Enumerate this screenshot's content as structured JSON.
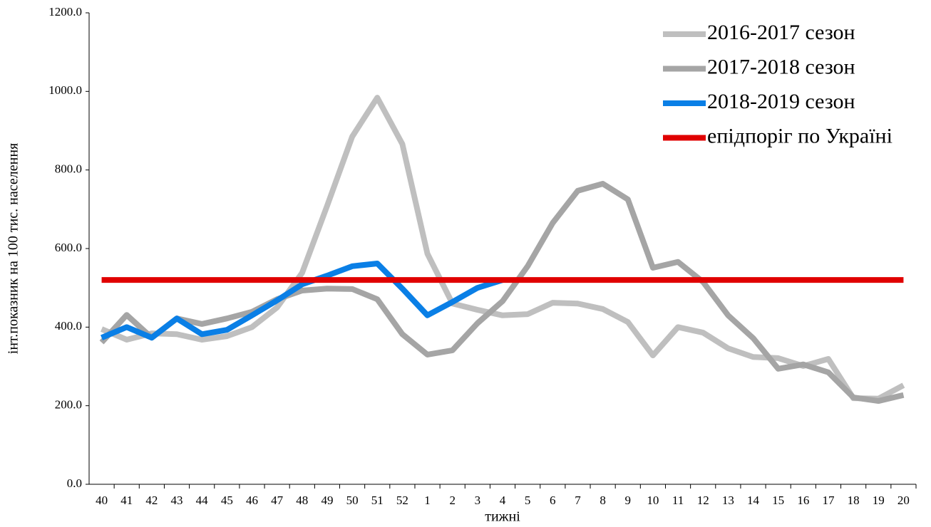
{
  "chart_data": {
    "type": "line",
    "xlabel": "тижні",
    "ylabel": "інт.показник на 100 тис. населення",
    "categories": [
      "40",
      "41",
      "42",
      "43",
      "44",
      "45",
      "46",
      "47",
      "48",
      "49",
      "50",
      "51",
      "52",
      "1",
      "2",
      "3",
      "4",
      "5",
      "6",
      "7",
      "8",
      "9",
      "10",
      "11",
      "12",
      "13",
      "14",
      "15",
      "16",
      "17",
      "18",
      "19",
      "20"
    ],
    "series": [
      {
        "name": "2016-2017 сезон",
        "color": "#bfbfbf",
        "values": [
          395,
          368,
          384,
          382,
          368,
          377,
          400,
          450,
          538,
          709,
          885,
          984,
          866,
          587,
          460,
          444,
          430,
          433,
          462,
          460,
          446,
          413,
          328,
          400,
          386,
          346,
          324,
          321,
          301,
          319,
          219,
          218,
          252
        ]
      },
      {
        "name": "2017-2018 сезон",
        "color": "#a5a5a5",
        "values": [
          361,
          431,
          373,
          422,
          408,
          422,
          439,
          471,
          493,
          498,
          497,
          471,
          382,
          330,
          341,
          410,
          466,
          555,
          665,
          747,
          765,
          725,
          551,
          566,
          515,
          430,
          372,
          294,
          305,
          285,
          221,
          212,
          227
        ]
      },
      {
        "name": "2018-2019 сезон",
        "color": "#0a7fe6",
        "values": [
          373,
          400,
          373,
          422,
          382,
          393,
          430,
          468,
          509,
          531,
          555,
          562,
          498,
          430,
          464,
          500,
          520,
          null,
          null,
          null,
          null,
          null,
          null,
          null,
          null,
          null,
          null,
          null,
          null,
          null,
          null,
          null,
          null
        ]
      },
      {
        "name": "епідпоріг по Україні",
        "color": "#e00000",
        "values": [
          520,
          520,
          520,
          520,
          520,
          520,
          520,
          520,
          520,
          520,
          520,
          520,
          520,
          520,
          520,
          520,
          520,
          520,
          520,
          520,
          520,
          520,
          520,
          520,
          520,
          520,
          520,
          520,
          520,
          520,
          520,
          520,
          520
        ]
      }
    ],
    "ylim": [
      0,
      1200
    ],
    "yticks": [
      {
        "value": 0,
        "label": "0.0"
      },
      {
        "value": 200,
        "label": "200.0"
      },
      {
        "value": 400,
        "label": "400.0"
      },
      {
        "value": 600,
        "label": "600.0"
      },
      {
        "value": 800,
        "label": "800.0"
      },
      {
        "value": 1000,
        "label": "1000.0"
      },
      {
        "value": 1200,
        "label": "1200.0"
      }
    ],
    "grid": false,
    "legend": "top-right"
  }
}
